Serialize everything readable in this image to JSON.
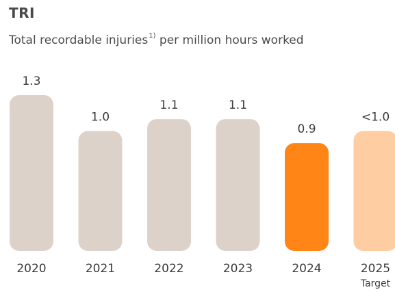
{
  "title": "TRI",
  "subtitle": {
    "text": "Total recordable injuries",
    "footnote_marker": "1)",
    "suffix": " per million hours worked"
  },
  "colors": {
    "past": "#ddd2c9",
    "current": "#ff8517",
    "target": "#ffcda2",
    "text": "#3a3a3a"
  },
  "chart_data": {
    "type": "bar",
    "categories": [
      "2020",
      "2021",
      "2022",
      "2023",
      "2024",
      "2025"
    ],
    "category_sublabels": [
      "",
      "",
      "",
      "",
      "",
      "Target"
    ],
    "values": [
      1.3,
      1.0,
      1.1,
      1.1,
      0.9,
      1.0
    ],
    "value_labels": [
      "1.3",
      "1.0",
      "1.1",
      "1.1",
      "0.9",
      "<1.0"
    ],
    "bar_roles": [
      "past",
      "past",
      "past",
      "past",
      "current",
      "target"
    ],
    "title": "TRI",
    "xlabel": "",
    "ylabel": "",
    "ylim": [
      0,
      1.3
    ],
    "grid": false,
    "legend": "none"
  }
}
